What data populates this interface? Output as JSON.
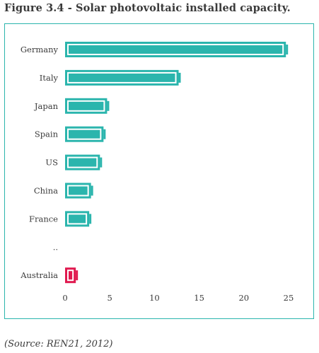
{
  "header": {
    "title": "Figure 3.4 - Solar photovoltaic installed capacity."
  },
  "footer": {
    "source": "(Source: REN21, 2012)"
  },
  "colors": {
    "bar": "#2bb5ad",
    "highlight": "#e0194f",
    "frame": "#2bb5ad",
    "text": "#3a3a3a"
  },
  "chart_data": {
    "type": "bar",
    "orientation": "horizontal",
    "categories": [
      "Germany",
      "Italy",
      "Japan",
      "Spain",
      "US",
      "China",
      "France",
      "..",
      "Australia"
    ],
    "values": [
      24.7,
      12.7,
      4.7,
      4.3,
      3.9,
      2.9,
      2.7,
      null,
      1.2
    ],
    "highlight": "Australia",
    "xlim": [
      0,
      27
    ],
    "xticks": [
      0,
      5,
      10,
      15,
      20,
      25
    ],
    "title": "Figure 3.4 - Solar photovoltaic installed capacity.",
    "xlabel": "",
    "ylabel": "",
    "grid": false
  }
}
